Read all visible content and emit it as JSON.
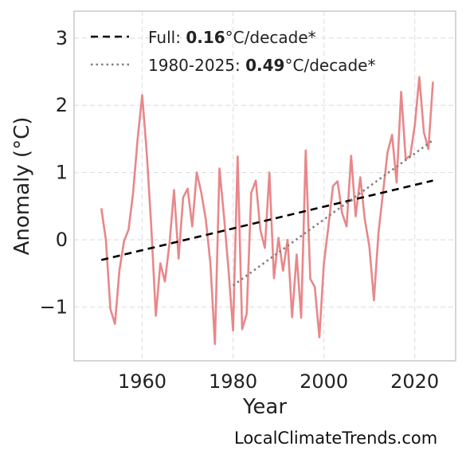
{
  "chart_data": {
    "type": "line",
    "xlabel": "Year",
    "ylabel": "Anomaly (°C)",
    "xlim": [
      1945,
      2029
    ],
    "ylim": [
      -1.8,
      3.4
    ],
    "xticks": [
      1960,
      1980,
      2000,
      2020
    ],
    "xtick_labels": [
      "1960",
      "1980",
      "2000",
      "2020"
    ],
    "yticks": [
      -1,
      0,
      1,
      2,
      3
    ],
    "ytick_labels": [
      "−1",
      "0",
      "1",
      "2",
      "3"
    ],
    "grid": true,
    "legend_position": "top-left",
    "series": [
      {
        "color": "#e8878a",
        "x": [
          1951,
          1952,
          1953,
          1954,
          1955,
          1956,
          1957,
          1958,
          1959,
          1960,
          1961,
          1962,
          1963,
          1964,
          1965,
          1966,
          1967,
          1968,
          1969,
          1970,
          1971,
          1972,
          1973,
          1974,
          1975,
          1976,
          1977,
          1978,
          1979,
          1980,
          1981,
          1982,
          1983,
          1984,
          1985,
          1986,
          1987,
          1988,
          1989,
          1990,
          1991,
          1992,
          1993,
          1994,
          1995,
          1996,
          1997,
          1998,
          1999,
          2000,
          2001,
          2002,
          2003,
          2004,
          2005,
          2006,
          2007,
          2008,
          2009,
          2010,
          2011,
          2012,
          2013,
          2014,
          2015,
          2016,
          2017,
          2018,
          2019,
          2020,
          2021,
          2022,
          2023,
          2024
        ],
        "y": [
          0.47,
          0.0,
          -1.03,
          -1.25,
          -0.45,
          -0.02,
          0.15,
          0.7,
          1.5,
          2.15,
          1.3,
          0.2,
          -1.13,
          -0.35,
          -0.62,
          -0.05,
          0.74,
          -0.28,
          0.63,
          0.76,
          0.2,
          1.0,
          0.7,
          0.3,
          -0.35,
          -1.55,
          1.06,
          0.35,
          -0.45,
          -1.35,
          1.24,
          -1.33,
          -1.1,
          0.7,
          0.88,
          0.15,
          -0.12,
          1.0,
          -0.57,
          0.03,
          -0.46,
          0.0,
          -1.15,
          -0.22,
          -1.16,
          1.33,
          -0.58,
          -0.7,
          -1.45,
          -0.35,
          0.2,
          0.8,
          0.87,
          0.4,
          0.2,
          1.25,
          0.35,
          0.93,
          0.3,
          -0.1,
          -0.9,
          0.1,
          0.7,
          1.3,
          1.56,
          0.85,
          2.2,
          1.2,
          1.25,
          1.7,
          2.42,
          1.6,
          1.35,
          2.35
        ]
      },
      {
        "name": "Full",
        "rate": "0.16",
        "unit": "°C/decade*",
        "style": "dashed",
        "color": "#000000",
        "x": [
          1951,
          2024
        ],
        "y": [
          -0.3,
          0.88
        ]
      },
      {
        "name": "1980-2025",
        "rate": "0.49",
        "unit": "°C/decade*",
        "style": "dotted",
        "color": "#808080",
        "x": [
          1980,
          2024
        ],
        "y": [
          -0.68,
          1.48
        ]
      }
    ]
  },
  "credit": "LocalClimateTrends.com"
}
